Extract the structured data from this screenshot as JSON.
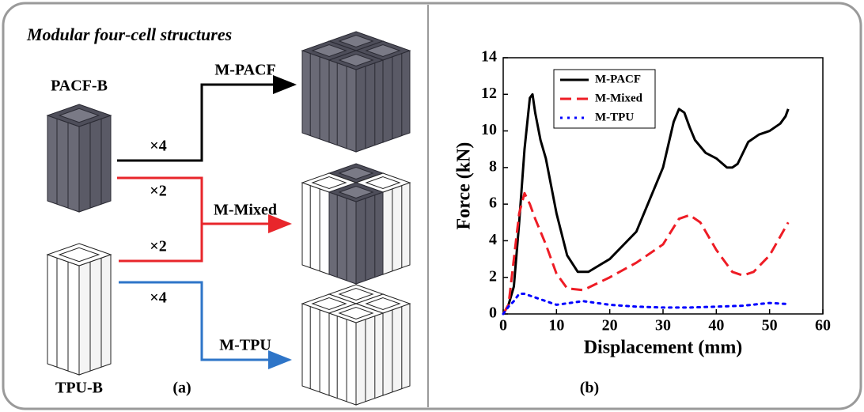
{
  "diagram": {
    "title": "Modular four-cell structures",
    "sources": [
      "PACF-B",
      "TPU-B"
    ],
    "outputs": [
      "M-PACF",
      "M-Mixed",
      "M-TPU"
    ],
    "multipliers": [
      "×4",
      "×2",
      "×2",
      "×4"
    ],
    "caption": "(a)"
  },
  "chart_data": {
    "type": "line",
    "caption": "(b)",
    "x_label": "Displacement (mm)",
    "y_label": "Force (kN)",
    "xlim": [
      0,
      60
    ],
    "ylim": [
      0,
      14
    ],
    "xticks": [
      0,
      10,
      20,
      30,
      40,
      50,
      60
    ],
    "yticks": [
      0,
      2,
      4,
      6,
      8,
      10,
      12,
      14
    ],
    "legend": "upper-left",
    "series": [
      {
        "name": "M-PACF",
        "color": "#000000",
        "linestyle": "solid",
        "x": [
          0,
          1,
          2,
          3,
          4,
          5,
          5.5,
          6,
          7,
          8,
          10,
          12,
          14,
          16,
          20,
          25,
          30,
          32,
          33,
          34,
          35,
          36,
          38,
          40,
          42,
          43,
          44,
          45,
          46,
          48,
          50,
          52,
          53,
          53.5
        ],
        "values": [
          0,
          0.5,
          1.5,
          5,
          9,
          11.8,
          12,
          11,
          9.5,
          8.5,
          5.5,
          3.2,
          2.3,
          2.3,
          3,
          4.5,
          8,
          10.5,
          11.2,
          11,
          10.2,
          9.5,
          8.8,
          8.5,
          8,
          8,
          8.2,
          8.8,
          9.4,
          9.8,
          10,
          10.4,
          10.8,
          11.2
        ]
      },
      {
        "name": "M-Mixed",
        "color": "#ee1c25",
        "linestyle": "dashed",
        "x": [
          0,
          1,
          2,
          3,
          4,
          5,
          6,
          8,
          10,
          12,
          15,
          20,
          25,
          30,
          33,
          35,
          37,
          40,
          43,
          45,
          47,
          50,
          53.5
        ],
        "values": [
          0,
          0.5,
          3,
          5.5,
          6.6,
          6,
          5.2,
          3.8,
          2.2,
          1.4,
          1.3,
          2,
          2.8,
          3.8,
          5.2,
          5.4,
          5,
          3.5,
          2.3,
          2.1,
          2.3,
          3.2,
          5
        ]
      },
      {
        "name": "M-TPU",
        "color": "#0000ff",
        "linestyle": "dotted",
        "x": [
          0,
          1,
          2,
          3,
          4,
          5,
          6,
          8,
          10,
          15,
          20,
          25,
          30,
          35,
          40,
          45,
          50,
          53
        ],
        "values": [
          0,
          0.4,
          0.7,
          1.1,
          1.1,
          1,
          0.9,
          0.7,
          0.5,
          0.7,
          0.5,
          0.4,
          0.35,
          0.35,
          0.4,
          0.45,
          0.6,
          0.55
        ]
      }
    ]
  }
}
